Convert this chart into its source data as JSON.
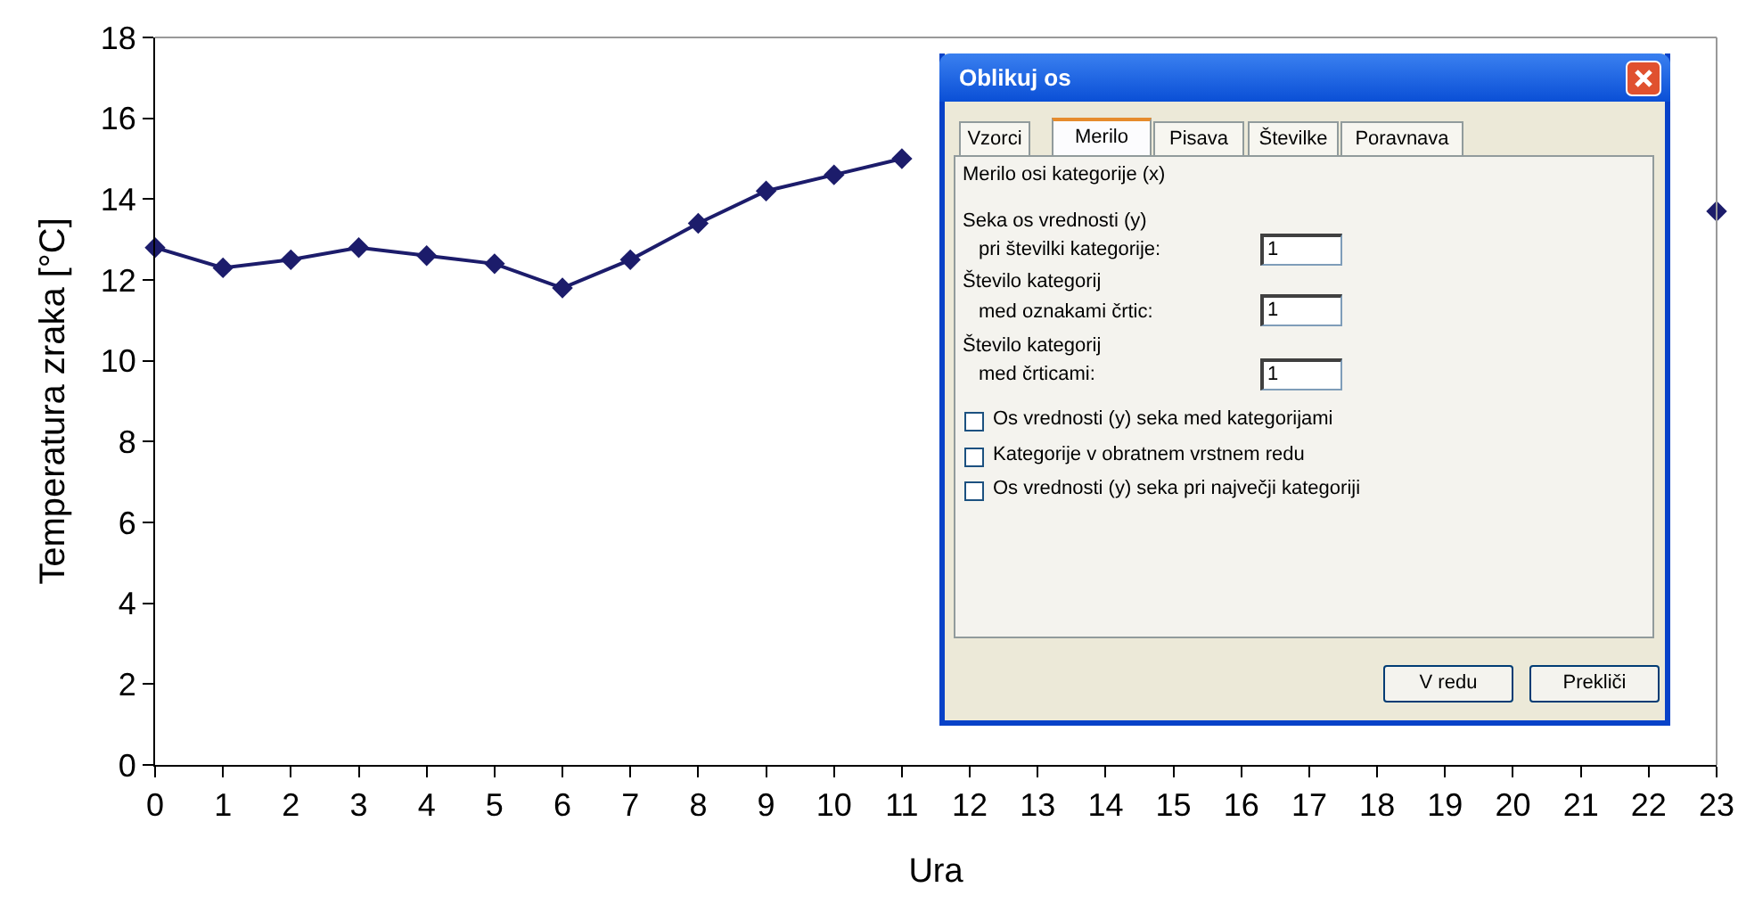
{
  "chart_data": [
    {
      "type": "line",
      "xlabel": "Ura",
      "ylabel": "Temperatura zraka [°C]",
      "x": [
        0,
        1,
        2,
        3,
        4,
        5,
        6,
        7,
        8,
        9,
        10,
        11,
        12,
        13,
        14,
        15,
        16,
        17,
        18,
        19,
        20,
        21,
        22,
        23
      ],
      "series": [
        {
          "color": "#1c1c6b",
          "values": [
            12.8,
            12.3,
            12.5,
            12.8,
            12.6,
            12.4,
            11.8,
            12.5,
            13.4,
            14.2,
            14.6,
            15.0,
            null,
            null,
            null,
            null,
            null,
            null,
            null,
            null,
            null,
            null,
            null,
            13.7
          ]
        }
      ],
      "xlim": [
        0,
        23
      ],
      "xticks": [
        0,
        1,
        2,
        3,
        4,
        5,
        6,
        7,
        8,
        9,
        10,
        11,
        12,
        13,
        14,
        15,
        16,
        17,
        18,
        19,
        20,
        21,
        22,
        23
      ],
      "ylim": [
        0,
        18
      ],
      "yticks": [
        0,
        2,
        4,
        6,
        8,
        10,
        12,
        14,
        16,
        18
      ],
      "marker": "diamond",
      "line_style": "solid"
    },
    {
      "type": "other",
      "title": "Oblikuj os",
      "annotations": [
        "Vzorci",
        "Merilo",
        "Pisava",
        "Številke",
        "Poravnava",
        "Merilo osi kategorije (x)",
        "Seka os vrednosti (y)",
        "pri številki kategorije:",
        "Število kategorij",
        "med oznakami črtic:",
        "Število kategorij",
        "med črticami:",
        "1",
        "1",
        "1",
        "Os vrednosti (y) seka med kategorijami",
        "Kategorije v obratnem vrstnem redu",
        "Os vrednosti (y) seka pri največji kategoriji",
        "V redu",
        "Prekliči"
      ]
    }
  ]
}
